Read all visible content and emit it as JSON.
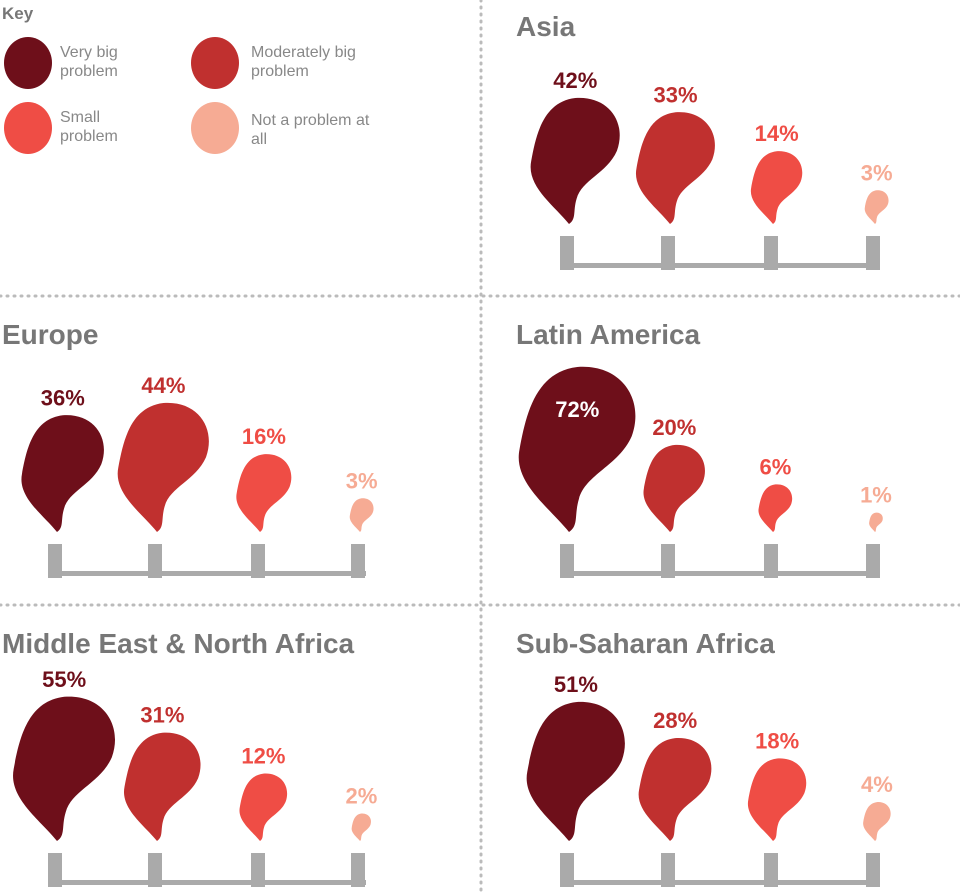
{
  "key": {
    "title": "Key",
    "items": [
      {
        "name": "Very big problem",
        "color": "#6e0f1a"
      },
      {
        "name": "Moderately big problem",
        "color": "#c0302f"
      },
      {
        "name": "Small problem",
        "color": "#ef4d45"
      },
      {
        "name": "Not a problem at all",
        "color": "#f6ab94"
      }
    ]
  },
  "chart_data": [
    {
      "type": "smoke",
      "title": "Asia",
      "values": [
        42,
        33,
        14,
        3
      ],
      "value_labels": [
        "42%",
        "33%",
        "14%",
        "3%"
      ]
    },
    {
      "type": "smoke",
      "title": "Europe",
      "values": [
        36,
        44,
        16,
        3
      ],
      "value_labels": [
        "36%",
        "44%",
        "16%",
        "3%"
      ]
    },
    {
      "type": "smoke",
      "title": "Latin America",
      "values": [
        72,
        20,
        6,
        1
      ],
      "value_labels": [
        "72%",
        "20%",
        "6%",
        "1%"
      ]
    },
    {
      "type": "smoke",
      "title": "Middle East & North Africa",
      "values": [
        55,
        31,
        12,
        2
      ],
      "value_labels": [
        "55%",
        "31%",
        "12%",
        "2%"
      ]
    },
    {
      "type": "smoke",
      "title": "Sub-Saharan Africa",
      "values": [
        51,
        28,
        18,
        4
      ],
      "value_labels": [
        "51%",
        "28%",
        "18%",
        "4%"
      ]
    }
  ]
}
